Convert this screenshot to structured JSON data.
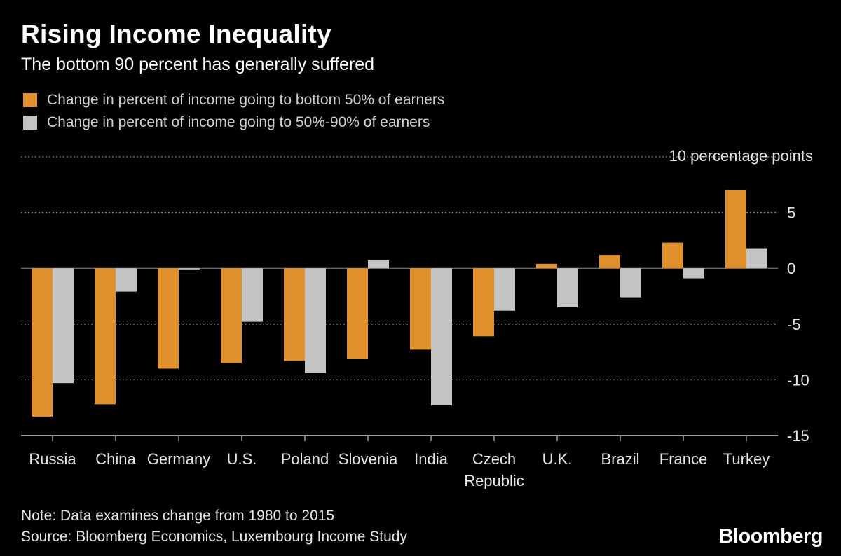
{
  "title": "Rising Income Inequality",
  "subtitle": "The bottom 90 percent has generally suffered",
  "unit_label": "10 percentage points",
  "note": "Note: Data examines change from 1980 to 2015",
  "source": "Source: Bloomberg Economics, Luxembourg Income Study",
  "brand": "Bloomberg",
  "colors": {
    "bottom50": "#e0902c",
    "mid40": "#c4c4c4",
    "grid": "#8a8a8a",
    "axis": "#d0d0d0"
  },
  "chart_data": {
    "type": "bar",
    "title": "Rising Income Inequality",
    "subtitle": "The bottom 90 percent has generally suffered",
    "xlabel": "",
    "ylabel": "10 percentage points",
    "ylim": [
      -15,
      10
    ],
    "yticks": [
      10,
      5,
      0,
      -5,
      -10,
      -15
    ],
    "ytick_labels": [
      "",
      "5",
      "0",
      "-5",
      "-10",
      "-15"
    ],
    "categories": [
      [
        "Russia"
      ],
      [
        "China"
      ],
      [
        "Germany"
      ],
      [
        "U.S."
      ],
      [
        "Poland"
      ],
      [
        "Slovenia"
      ],
      [
        "India"
      ],
      [
        "Czech",
        "Republic"
      ],
      [
        "U.K."
      ],
      [
        "Brazil"
      ],
      [
        "France"
      ],
      [
        "Turkey"
      ]
    ],
    "series": [
      {
        "name": "Change in percent of income going to bottom 50% of earners",
        "values": [
          -13.3,
          -12.2,
          -9.0,
          -8.5,
          -8.3,
          -8.1,
          -7.3,
          -6.1,
          0.4,
          1.2,
          2.3,
          7.0
        ]
      },
      {
        "name": "Change in percent of income going to 50%-90% of earners",
        "values": [
          -10.3,
          -2.1,
          -0.1,
          -4.8,
          -9.4,
          0.7,
          -12.3,
          -3.8,
          -3.5,
          -2.6,
          -0.9,
          1.8
        ]
      }
    ],
    "legend_position": "top-left"
  }
}
